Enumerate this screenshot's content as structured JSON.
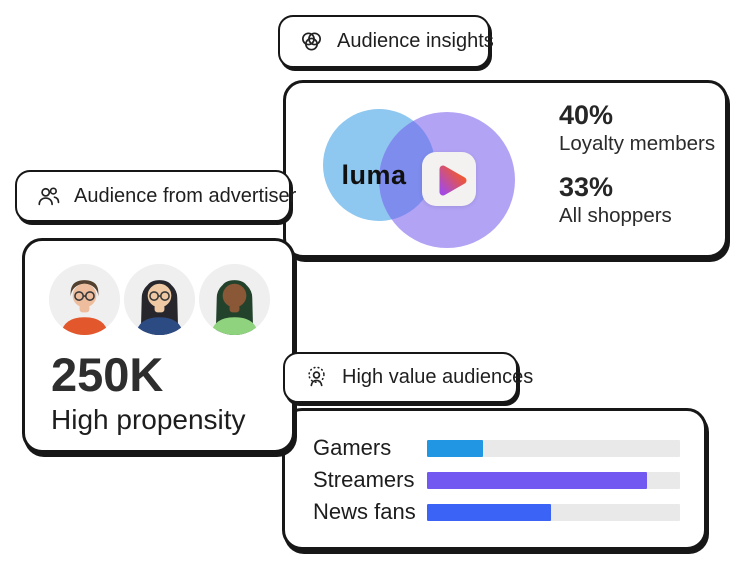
{
  "pills": {
    "audience_insights": {
      "label": "Audience insights",
      "icon": "venn-circles-icon"
    },
    "audience_from_advertiser": {
      "label": "Audience from advertiser",
      "icon": "people-icon"
    },
    "high_value_audiences": {
      "label": "High value audiences",
      "icon": "person-target-icon"
    }
  },
  "venn_card": {
    "left_label": "luma",
    "overlap_logo": "play-icon",
    "stats": [
      {
        "value": "40%",
        "label": "Loyalty members"
      },
      {
        "value": "33%",
        "label": "All shoppers"
      }
    ],
    "colors": {
      "left_circle": "#8ec7ef",
      "right_circle": "#b2a3f5",
      "overlap": "#7e8cee",
      "play_gradient_start": "#a44ae0",
      "play_gradient_end": "#ff5a0f"
    }
  },
  "audience_card": {
    "count": "250K",
    "label": "High propensity",
    "avatars": [
      {
        "alt": "smiling woman with short hair, glasses and orange top",
        "skin": "#edbd9d",
        "hair": "#54402e",
        "shirt": "#e2572b",
        "glasses": true,
        "long_hair": false
      },
      {
        "alt": "woman with long dark hair, glasses and navy top",
        "skin": "#eec9a3",
        "hair": "#26262c",
        "shirt": "#2c4b82",
        "glasses": true,
        "long_hair": true
      },
      {
        "alt": "smiling woman with dark green braids and green top",
        "skin": "#8a5737",
        "hair": "#23422c",
        "shirt": "#8fd37f",
        "glasses": false,
        "long_hair": true
      }
    ]
  },
  "chart_data": {
    "type": "bar",
    "orientation": "horizontal",
    "categories": [
      "Gamers",
      "Streamers",
      "News fans"
    ],
    "values": [
      22,
      87,
      49
    ],
    "xlim": [
      0,
      100
    ],
    "grid": false,
    "legend": false,
    "bar_colors": [
      "#2196e3",
      "#7257f1",
      "#3b63f5"
    ],
    "track_color": "#e9e9e9"
  },
  "colors": {
    "ink": "#171717",
    "text": "#222222"
  }
}
